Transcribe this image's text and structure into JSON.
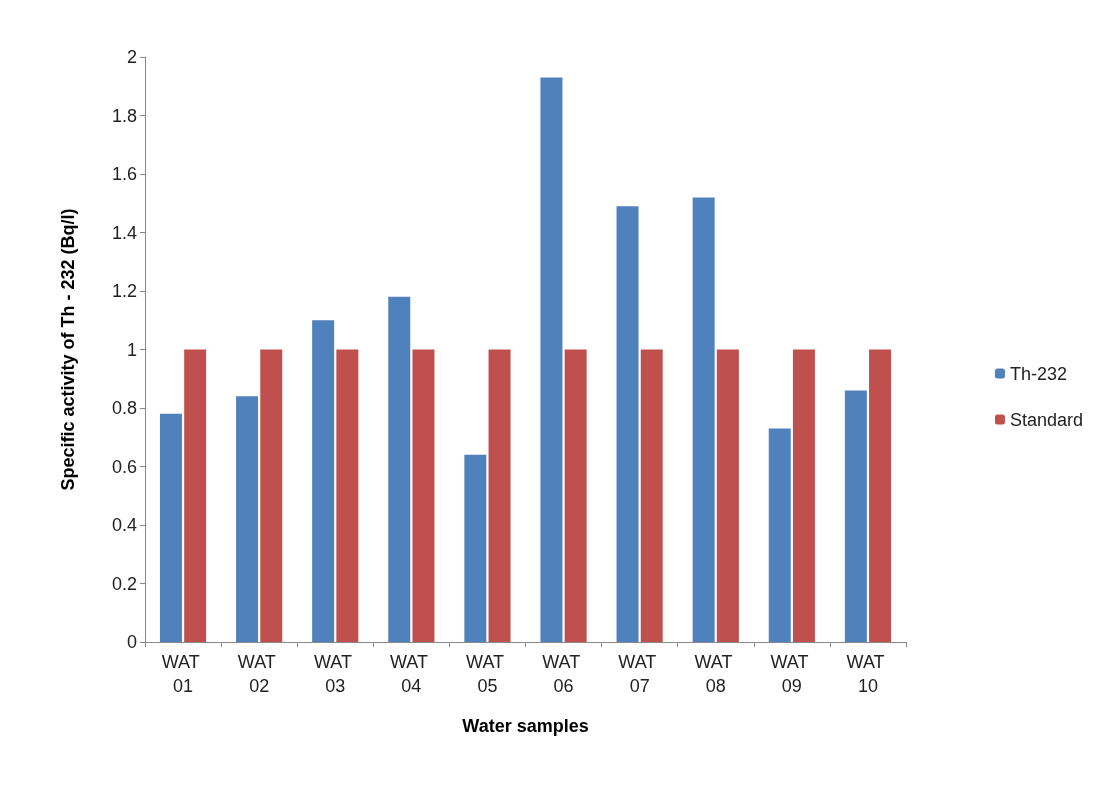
{
  "chart_data": {
    "type": "bar",
    "xlabel": "Water samples",
    "ylabel": "Specific activity of Th - 232 (Bq/l)",
    "categories": [
      "WAT 01",
      "WAT 02",
      "WAT 03",
      "WAT 04",
      "WAT 05",
      "WAT 06",
      "WAT 07",
      "WAT 08",
      "WAT 09",
      "WAT 10"
    ],
    "series": [
      {
        "name": "Th-232",
        "color": "#4f81bd",
        "values": [
          0.78,
          0.84,
          1.1,
          1.18,
          0.64,
          1.93,
          1.49,
          1.52,
          0.73,
          0.86
        ]
      },
      {
        "name": "Standard",
        "color": "#c0504d",
        "values": [
          1,
          1,
          1,
          1,
          1,
          1,
          1,
          1,
          1,
          1
        ]
      }
    ],
    "ylim": [
      0,
      2
    ],
    "yticks": [
      0,
      0.2,
      0.4,
      0.6,
      0.8,
      1,
      1.2,
      1.4,
      1.6,
      1.8,
      2
    ],
    "grid": false,
    "legend": "right"
  }
}
